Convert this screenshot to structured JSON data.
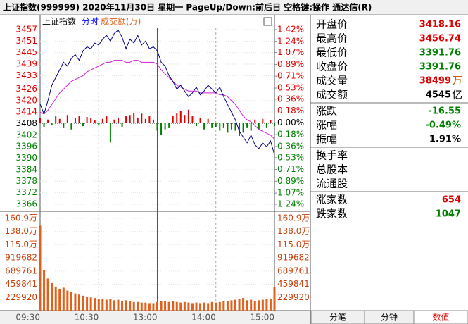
{
  "title_bar": "上证指数(999999)  2020年11月30日 星期一 PageUp/Down:前后日 空格键:操作 通达信(R)",
  "chart_data": [
    {
      "type": "line",
      "title": "上证指数",
      "subtitle": "分时",
      "categories": [
        "09:30",
        null,
        null,
        null,
        null,
        null,
        null,
        null,
        null,
        null,
        null,
        null,
        null,
        null,
        null,
        "10:30",
        null,
        null,
        null,
        null,
        null,
        null,
        null,
        null,
        null,
        null,
        null,
        null,
        null,
        null,
        "13:00",
        null,
        null,
        null,
        null,
        null,
        null,
        null,
        null,
        null,
        null,
        null,
        null,
        null,
        null,
        "14:00",
        null,
        null,
        null,
        null,
        null,
        null,
        null,
        null,
        null,
        null,
        null,
        null,
        null,
        null,
        "15:00"
      ],
      "series": [
        {
          "type": "line",
          "color": "#000080",
          "values": [
            3418.16,
            3413,
            3420,
            3428,
            3432,
            3436,
            3440,
            3438,
            3442,
            3444,
            3441,
            3446,
            3448,
            3447,
            3450,
            3449,
            3452,
            3454,
            3451,
            3455,
            3456.74,
            3453,
            3447,
            3452,
            3450,
            3454,
            3449,
            3451,
            3447,
            3448,
            3446,
            3440,
            3438,
            3433,
            3430,
            3426,
            3428,
            3425,
            3422,
            3424,
            3427,
            3423,
            3425,
            3428,
            3426,
            3424,
            3427,
            3422,
            3418,
            3414,
            3410,
            3404,
            3401,
            3398,
            3402,
            3397,
            3395,
            3398,
            3396,
            3399,
            3391.76
          ]
        },
        {
          "type": "line",
          "color": "#d020d0",
          "values": [
            3414,
            3413,
            3415,
            3418,
            3421,
            3424,
            3426,
            3428,
            3430,
            3431,
            3432,
            3433,
            3435,
            3436,
            3437,
            3438,
            3439,
            3440,
            3440,
            3441,
            3441,
            3441,
            3440,
            3440,
            3441,
            3441,
            3440,
            3440,
            3440,
            3440,
            3439,
            3436,
            3434,
            3432,
            3430,
            3428,
            3427,
            3426,
            3425,
            3425,
            3425,
            3424,
            3424,
            3424,
            3424,
            3424,
            3423,
            3423,
            3422,
            3420,
            3418,
            3415,
            3412,
            3410,
            3409,
            3407,
            3405,
            3404,
            3403,
            3402,
            3400
          ]
        },
        {
          "type": "bar",
          "axis": "y2",
          "color": "#e00000",
          "down_color": "#008000",
          "values": [
            0.08,
            -0.06,
            0.05,
            -0.04,
            0.1,
            0.06,
            -0.08,
            0.12,
            -0.1,
            0.08,
            0.1,
            -0.05,
            0.09,
            0.07,
            0.04,
            -0.04,
            0.06,
            0.1,
            -0.3,
            0.05,
            0.08,
            -0.06,
            0.1,
            0.12,
            0.15,
            0.08,
            0.14,
            0.06,
            0.1,
            0.05,
            -0.12,
            -0.18,
            -0.1,
            -0.08,
            0.1,
            0.15,
            0.18,
            0.12,
            0.2,
            0.1,
            -0.05,
            0.08,
            -0.1,
            0.06,
            -0.08,
            -0.06,
            -0.12,
            -0.08,
            -0.15,
            -0.1,
            -0.12,
            -0.2,
            -0.15,
            -0.08,
            -0.12,
            0.05,
            -0.1,
            0.06,
            -0.08,
            0.04,
            -0.05
          ]
        }
      ],
      "ylim": [
        3366,
        3457
      ],
      "yticks": [
        3457,
        3451,
        3445,
        3439,
        3433,
        3426,
        3420,
        3414,
        3408,
        3402,
        3396,
        3390,
        3384,
        3378,
        3372,
        3366
      ],
      "y2lim": [
        -1.24,
        1.42
      ],
      "y2ticks": [
        {
          "value": 1.42,
          "label": "1.42%"
        },
        {
          "value": 1.24,
          "label": "1.24%"
        },
        {
          "value": 1.07,
          "label": "1.07%"
        },
        {
          "value": 0.89,
          "label": "0.89%"
        },
        {
          "value": 0.71,
          "label": "0.71%"
        },
        {
          "value": 0.53,
          "label": "0.53%"
        },
        {
          "value": 0.36,
          "label": "0.36%"
        },
        {
          "value": 0.18,
          "label": "0.18%"
        },
        {
          "value": 0,
          "label": "0.00%"
        },
        {
          "value": -0.18,
          "label": "0.18%"
        },
        {
          "value": -0.36,
          "label": "0.36%"
        },
        {
          "value": -0.53,
          "label": "0.53%"
        },
        {
          "value": -0.71,
          "label": "0.71%"
        },
        {
          "value": -0.89,
          "label": "0.89%"
        },
        {
          "value": -1.07,
          "label": "1.07%"
        },
        {
          "value": -1.24,
          "label": "1.24%"
        }
      ],
      "up_color": "#e00000",
      "down_color": "#008000",
      "grid": true
    },
    {
      "type": "bar",
      "title": "成交额(万)",
      "color": "#e0601c",
      "values": [
        1480000,
        700000,
        560000,
        480000,
        420000,
        380000,
        400000,
        350000,
        330000,
        300000,
        280000,
        260000,
        240000,
        230000,
        220000,
        200000,
        210000,
        190000,
        200000,
        180000,
        190000,
        170000,
        180000,
        160000,
        150000,
        150000,
        140000,
        140000,
        130000,
        130000,
        150000,
        170000,
        160000,
        150000,
        160000,
        150000,
        140000,
        150000,
        140000,
        130000,
        140000,
        130000,
        140000,
        130000,
        150000,
        140000,
        150000,
        160000,
        170000,
        180000,
        190000,
        200000,
        220000,
        180000,
        190000,
        170000,
        180000,
        190000,
        200000,
        210000,
        420000
      ],
      "ylim": [
        0,
        1609000
      ],
      "yticks": [
        {
          "value": 1609000,
          "label": "160.9万"
        },
        {
          "value": 1380000,
          "label": "138.0万"
        },
        {
          "value": 1150000,
          "label": "115.0万"
        },
        919682,
        689761,
        459841,
        229920
      ],
      "tick_color": "#c8400a"
    }
  ],
  "quote": {
    "groups": [
      [
        {
          "label": "开盘价",
          "value": "3418.16",
          "color": "#e00000"
        },
        {
          "label": "最高价",
          "value": "3456.74",
          "color": "#e00000"
        },
        {
          "label": "最低价",
          "value": "3391.76",
          "color": "#008000"
        },
        {
          "label": "收盘价",
          "value": "3391.76",
          "color": "#008000"
        },
        {
          "label": "成交量",
          "value": "38499",
          "unit": "万",
          "color": "#e00000",
          "unit_color": "#c8600a"
        },
        {
          "label": "成交额",
          "value": "4545",
          "unit": "亿",
          "color": "#000000",
          "unit_color": "#000000"
        }
      ],
      [
        {
          "label": "涨跌",
          "value": "-16.55",
          "color": "#008000"
        },
        {
          "label": "涨幅",
          "value": "-0.49%",
          "color": "#008000"
        },
        {
          "label": "振幅",
          "value": "1.91%",
          "color": "#000000"
        }
      ],
      [
        {
          "label": "换手率"
        },
        {
          "label": "总股本"
        },
        {
          "label": "流通股"
        }
      ],
      [
        {
          "label": "涨家数",
          "value": "654",
          "color": "#e00000"
        },
        {
          "label": "跌家数",
          "value": "1047",
          "color": "#008000"
        }
      ]
    ]
  },
  "tabs": [
    "分笔",
    "分钟",
    "数值"
  ],
  "active_tab": 2,
  "active_color": "#e00000"
}
